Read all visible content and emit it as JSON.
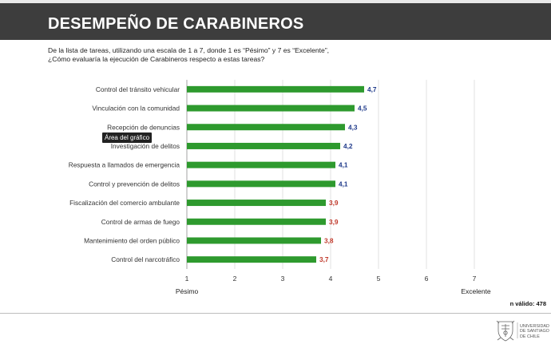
{
  "header": {
    "title": "DESEMPEÑO DE CARABINEROS"
  },
  "question": {
    "line1": "De la lista de tareas, utilizando una escala de 1 a 7, donde 1 es “Pésimo” y 7 es “Excelente”,",
    "line2": "¿Cómo evaluaría la ejecución de Carabineros respecto a estas tareas?"
  },
  "tooltip": "Área del gráfico",
  "n_valid": "n válido: 478",
  "university": {
    "line1": "UNIVERSIDAD",
    "line2": "DE SANTIAGO",
    "line3": "DE CHILE"
  },
  "colors": {
    "bar": "#2e9a2e",
    "label_high": "#1f3a8a",
    "label_low": "#c0392b",
    "header_bg": "#3d3d3d"
  },
  "chart_data": {
    "type": "bar",
    "orientation": "horizontal",
    "categories": [
      "Control del tránsito vehicular",
      "Vinculación con la comunidad",
      "Recepción de denuncias",
      "Investigación de delitos",
      "Respuesta a llamados de emergencia",
      "Control y prevención de delitos",
      "Fiscalización del comercio ambulante",
      "Control de armas de fuego",
      "Mantenimiento del orden público",
      "Control del narcotráfico"
    ],
    "values": [
      4.7,
      4.5,
      4.3,
      4.2,
      4.1,
      4.1,
      3.9,
      3.9,
      3.8,
      3.7
    ],
    "value_labels": [
      "4,7",
      "4,5",
      "4,3",
      "4,2",
      "4,1",
      "4,1",
      "3,9",
      "3,9",
      "3,8",
      "3,7"
    ],
    "label_colors": [
      "high",
      "high",
      "high",
      "high",
      "high",
      "high",
      "low",
      "low",
      "low",
      "low"
    ],
    "xlim": [
      1,
      7
    ],
    "xticks": [
      "1",
      "2",
      "3",
      "4",
      "5",
      "6",
      "7"
    ],
    "scale_min_label": "Pésimo",
    "scale_max_label": "Excelente",
    "grid": true
  }
}
